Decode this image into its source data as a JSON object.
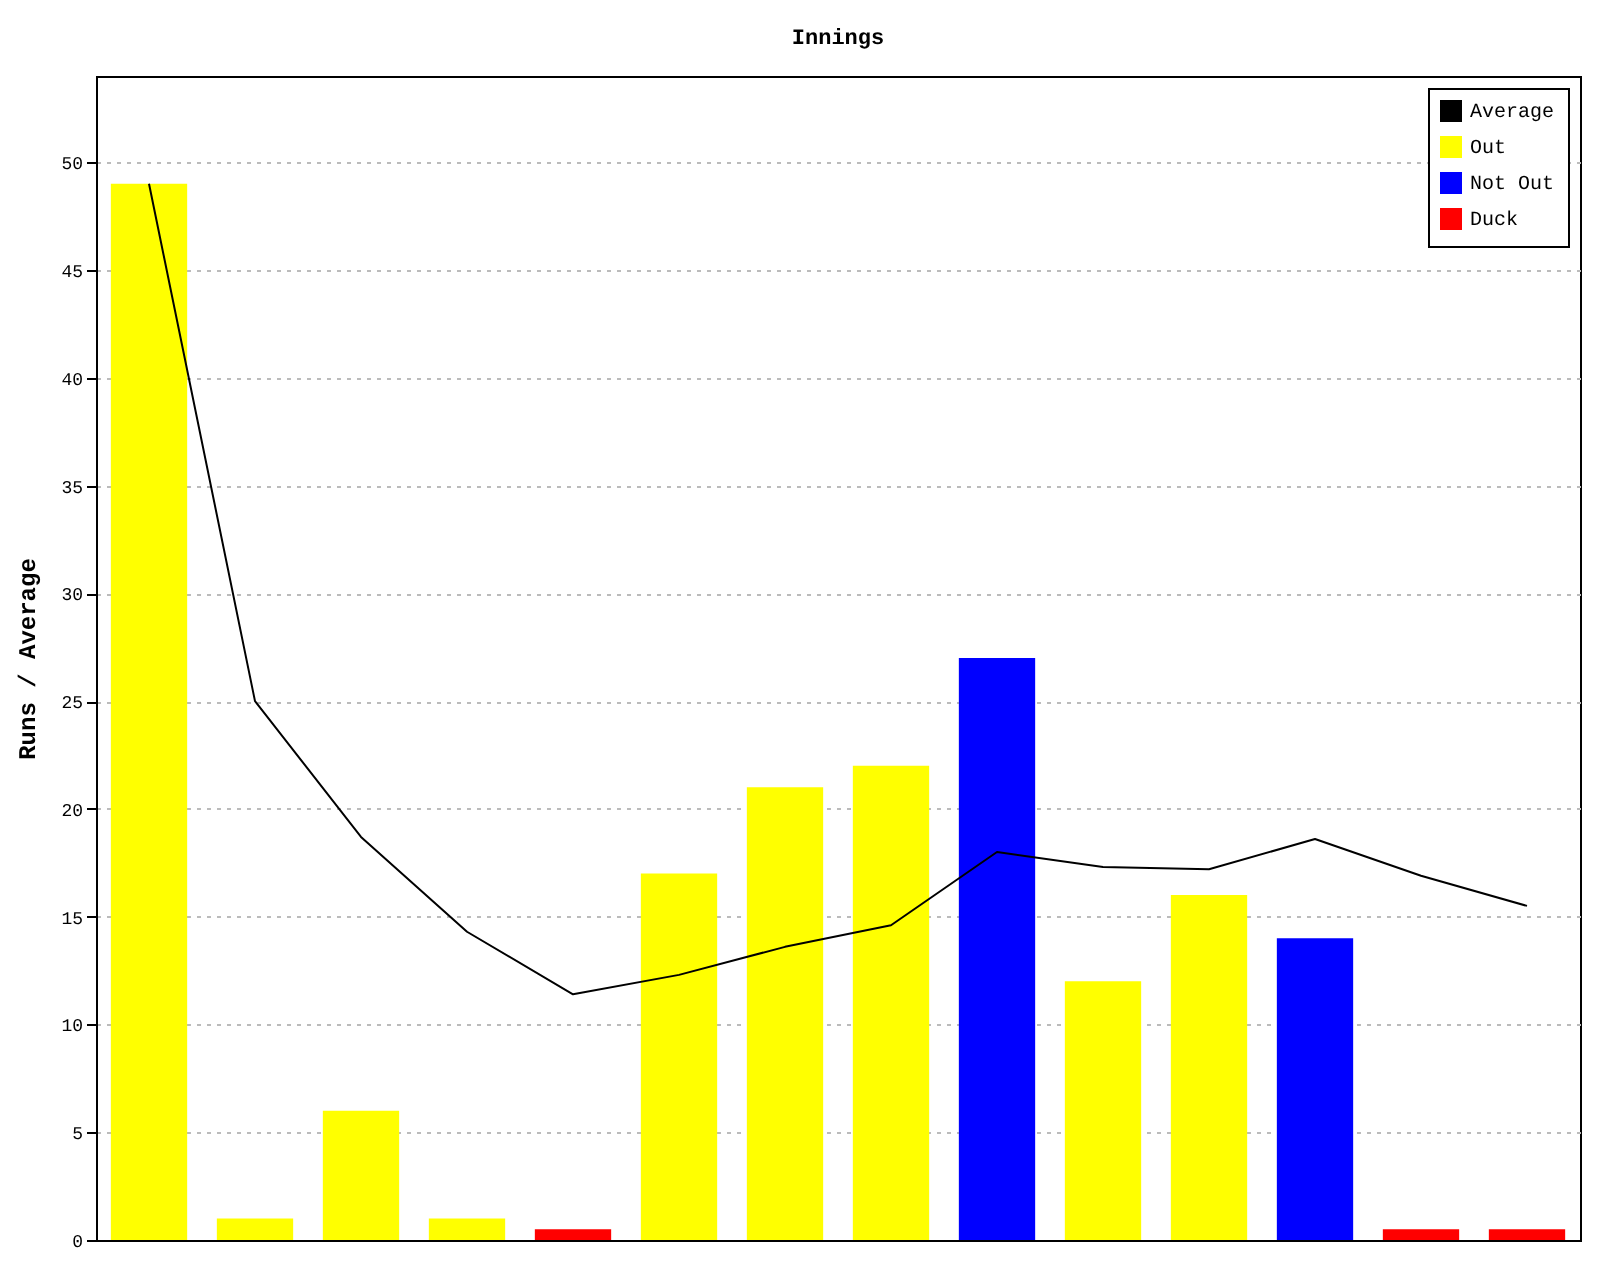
{
  "chart_data": {
    "type": "bar",
    "title": "Innings",
    "ylabel": "Runs / Average",
    "categories": [
      null,
      null,
      null,
      null,
      null,
      null,
      null,
      null,
      null,
      null,
      null,
      null,
      null,
      null
    ],
    "stacked": true,
    "series": [
      {
        "name": "Average",
        "type": "line",
        "color": "#000000",
        "values": [
          49,
          25,
          18.7,
          14.3,
          11.4,
          12.3,
          13.6,
          14.6,
          18,
          17.3,
          17.2,
          18.6,
          16.9,
          15.5
        ]
      },
      {
        "name": "Out",
        "color": "#ffff00",
        "values": [
          49,
          1,
          6,
          1,
          null,
          17,
          21,
          22,
          null,
          12,
          16,
          null,
          null,
          null
        ]
      },
      {
        "name": "Not Out",
        "color": "#0000ff",
        "values": [
          null,
          null,
          null,
          null,
          null,
          null,
          null,
          null,
          27,
          null,
          null,
          14,
          null,
          null
        ]
      },
      {
        "name": "Duck",
        "color": "#ff0000",
        "values": [
          null,
          null,
          null,
          null,
          0.5,
          null,
          null,
          null,
          null,
          null,
          null,
          null,
          0.5,
          0.5
        ]
      }
    ],
    "ylim": [
      0,
      54
    ],
    "yticks": [
      0,
      5,
      10,
      15,
      20,
      25,
      30,
      35,
      40,
      45,
      50
    ],
    "grid": "y",
    "legend": "top right",
    "marker": "none",
    "line_style": "solid"
  }
}
